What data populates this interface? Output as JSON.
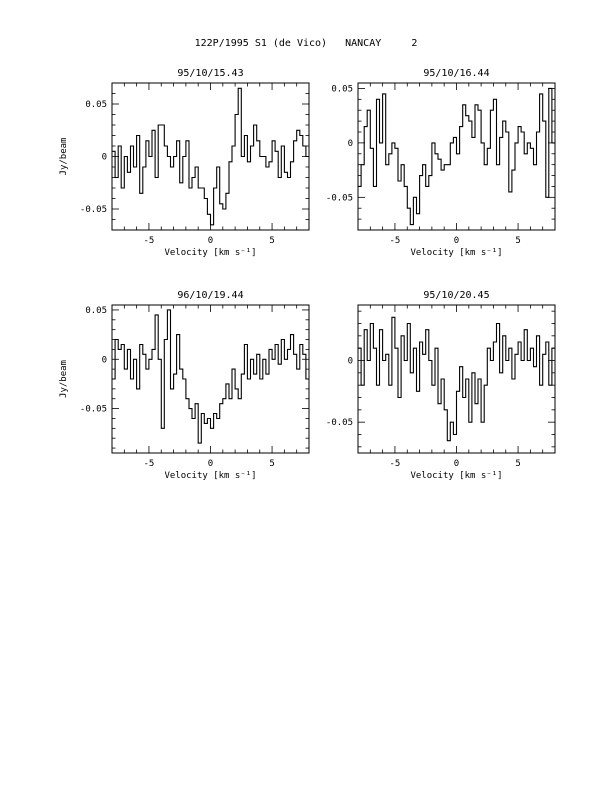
{
  "page": {
    "title": "122P/1995 S1 (de Vico)   NANCAY     2"
  },
  "chart_data": [
    {
      "type": "line",
      "step": true,
      "title": "95/10/15.43",
      "xlabel": "Velocity [km s⁻¹]",
      "ylabel": "Jy/beam",
      "xlim": [
        -8,
        8
      ],
      "ylim": [
        -0.07,
        0.07
      ],
      "xticks": [
        -5,
        0,
        5
      ],
      "yticks": [
        -0.05,
        0,
        0.05
      ],
      "ytick_labels": [
        "-0.05",
        "0",
        "0.05"
      ],
      "x": [
        -8.0,
        -7.75,
        -7.5,
        -7.25,
        -7.0,
        -6.75,
        -6.5,
        -6.25,
        -6.0,
        -5.75,
        -5.5,
        -5.25,
        -5.0,
        -4.75,
        -4.5,
        -4.25,
        -4.0,
        -3.75,
        -3.5,
        -3.25,
        -3.0,
        -2.75,
        -2.5,
        -2.25,
        -2.0,
        -1.75,
        -1.5,
        -1.25,
        -1.0,
        -0.75,
        -0.5,
        -0.25,
        0.0,
        0.25,
        0.5,
        0.75,
        1.0,
        1.25,
        1.5,
        1.75,
        2.0,
        2.25,
        2.5,
        2.75,
        3.0,
        3.25,
        3.5,
        3.75,
        4.0,
        4.25,
        4.5,
        4.75,
        5.0,
        5.25,
        5.5,
        5.75,
        6.0,
        6.25,
        6.5,
        6.75,
        7.0,
        7.25,
        7.5,
        7.75
      ],
      "y": [
        0.005,
        -0.02,
        0.01,
        -0.03,
        0.0,
        -0.015,
        0.01,
        -0.01,
        0.02,
        -0.035,
        -0.01,
        0.015,
        0.0,
        0.025,
        -0.02,
        0.03,
        0.03,
        0.01,
        0.0,
        -0.01,
        0.0,
        0.015,
        -0.025,
        0.0,
        0.015,
        -0.03,
        -0.02,
        -0.01,
        -0.03,
        -0.03,
        -0.04,
        -0.055,
        -0.065,
        -0.03,
        -0.01,
        -0.045,
        -0.05,
        -0.035,
        -0.005,
        0.01,
        0.04,
        0.065,
        0.0,
        0.02,
        -0.005,
        0.01,
        0.03,
        0.015,
        0.0,
        0.0,
        -0.01,
        -0.005,
        0.015,
        0.005,
        -0.02,
        0.01,
        -0.015,
        -0.02,
        -0.005,
        0.015,
        0.025,
        0.02,
        0.01,
        0.0
      ]
    },
    {
      "type": "line",
      "step": true,
      "title": "95/10/16.44",
      "xlabel": "Velocity [km s⁻¹]",
      "ylabel": "",
      "xlim": [
        -8,
        8
      ],
      "ylim": [
        -0.08,
        0.055
      ],
      "xticks": [
        -5,
        0,
        5
      ],
      "yticks": [
        -0.05,
        0,
        0.05
      ],
      "ytick_labels": [
        "-0.05",
        "0",
        "0.05"
      ],
      "x": [
        -8.0,
        -7.75,
        -7.5,
        -7.25,
        -7.0,
        -6.75,
        -6.5,
        -6.25,
        -6.0,
        -5.75,
        -5.5,
        -5.25,
        -5.0,
        -4.75,
        -4.5,
        -4.25,
        -4.0,
        -3.75,
        -3.5,
        -3.25,
        -3.0,
        -2.75,
        -2.5,
        -2.25,
        -2.0,
        -1.75,
        -1.5,
        -1.25,
        -1.0,
        -0.75,
        -0.5,
        -0.25,
        0.0,
        0.25,
        0.5,
        0.75,
        1.0,
        1.25,
        1.5,
        1.75,
        2.0,
        2.25,
        2.5,
        2.75,
        3.0,
        3.25,
        3.5,
        3.75,
        4.0,
        4.25,
        4.5,
        4.75,
        5.0,
        5.25,
        5.5,
        5.75,
        6.0,
        6.25,
        6.5,
        6.75,
        7.0,
        7.25,
        7.5,
        7.75
      ],
      "y": [
        -0.04,
        -0.02,
        0.015,
        0.03,
        -0.005,
        -0.04,
        0.04,
        0.0,
        0.045,
        -0.02,
        -0.01,
        0.0,
        -0.005,
        -0.035,
        -0.02,
        -0.04,
        -0.06,
        -0.075,
        -0.05,
        -0.065,
        -0.03,
        -0.02,
        -0.04,
        -0.03,
        0.0,
        -0.01,
        -0.015,
        -0.025,
        -0.02,
        -0.02,
        0.0,
        0.005,
        -0.01,
        0.015,
        0.035,
        0.025,
        0.02,
        0.005,
        0.035,
        0.03,
        0.0,
        -0.02,
        -0.005,
        0.03,
        0.04,
        -0.02,
        0.005,
        0.02,
        0.01,
        -0.045,
        -0.025,
        0.0,
        0.015,
        0.01,
        -0.01,
        0.0,
        -0.005,
        -0.02,
        0.01,
        0.045,
        0.02,
        -0.05,
        0.05,
        0.0
      ]
    },
    {
      "type": "line",
      "step": true,
      "title": "96/10/19.44",
      "xlabel": "Velocity [km s⁻¹]",
      "ylabel": "Jy/beam",
      "xlim": [
        -8,
        8
      ],
      "ylim": [
        -0.095,
        0.055
      ],
      "xticks": [
        -5,
        0,
        5
      ],
      "yticks": [
        -0.05,
        0,
        0.05
      ],
      "ytick_labels": [
        "-0.05",
        "0",
        "0.05"
      ],
      "x": [
        -8.0,
        -7.75,
        -7.5,
        -7.25,
        -7.0,
        -6.75,
        -6.5,
        -6.25,
        -6.0,
        -5.75,
        -5.5,
        -5.25,
        -5.0,
        -4.75,
        -4.5,
        -4.25,
        -4.0,
        -3.75,
        -3.5,
        -3.25,
        -3.0,
        -2.75,
        -2.5,
        -2.25,
        -2.0,
        -1.75,
        -1.5,
        -1.25,
        -1.0,
        -0.75,
        -0.5,
        -0.25,
        0.0,
        0.25,
        0.5,
        0.75,
        1.0,
        1.25,
        1.5,
        1.75,
        2.0,
        2.25,
        2.5,
        2.75,
        3.0,
        3.25,
        3.5,
        3.75,
        4.0,
        4.25,
        4.5,
        4.75,
        5.0,
        5.25,
        5.5,
        5.75,
        6.0,
        6.25,
        6.5,
        6.75,
        7.0,
        7.25,
        7.5,
        7.75
      ],
      "y": [
        -0.02,
        0.02,
        0.01,
        0.015,
        -0.01,
        0.01,
        -0.02,
        0.0,
        -0.03,
        0.015,
        0.005,
        -0.01,
        0.0,
        0.01,
        0.045,
        0.0,
        -0.07,
        0.02,
        0.05,
        -0.03,
        -0.015,
        0.025,
        -0.01,
        -0.02,
        -0.04,
        -0.05,
        -0.06,
        -0.045,
        -0.085,
        -0.055,
        -0.065,
        -0.06,
        -0.07,
        -0.055,
        -0.06,
        -0.045,
        -0.04,
        -0.025,
        -0.04,
        -0.01,
        -0.03,
        -0.04,
        -0.015,
        0.015,
        -0.02,
        0.0,
        -0.015,
        0.005,
        -0.02,
        0.0,
        -0.015,
        0.01,
        0.0,
        0.015,
        -0.005,
        0.02,
        0.0,
        0.01,
        0.025,
        0.005,
        -0.01,
        0.015,
        0.005,
        -0.02
      ]
    },
    {
      "type": "line",
      "step": true,
      "title": "95/10/20.45",
      "xlabel": "Velocity [km s⁻¹]",
      "ylabel": "",
      "xlim": [
        -8,
        8
      ],
      "ylim": [
        -0.075,
        0.045
      ],
      "xticks": [
        -5,
        0,
        5
      ],
      "yticks": [
        -0.05,
        0
      ],
      "ytick_labels": [
        "-0.05",
        "0"
      ],
      "x": [
        -8.0,
        -7.75,
        -7.5,
        -7.25,
        -7.0,
        -6.75,
        -6.5,
        -6.25,
        -6.0,
        -5.75,
        -5.5,
        -5.25,
        -5.0,
        -4.75,
        -4.5,
        -4.25,
        -4.0,
        -3.75,
        -3.5,
        -3.25,
        -3.0,
        -2.75,
        -2.5,
        -2.25,
        -2.0,
        -1.75,
        -1.5,
        -1.25,
        -1.0,
        -0.75,
        -0.5,
        -0.25,
        0.0,
        0.25,
        0.5,
        0.75,
        1.0,
        1.25,
        1.5,
        1.75,
        2.0,
        2.25,
        2.5,
        2.75,
        3.0,
        3.25,
        3.5,
        3.75,
        4.0,
        4.25,
        4.5,
        4.75,
        5.0,
        5.25,
        5.5,
        5.75,
        6.0,
        6.25,
        6.5,
        6.75,
        7.0,
        7.25,
        7.5,
        7.75
      ],
      "y": [
        0.01,
        -0.02,
        0.025,
        0.0,
        0.03,
        0.01,
        -0.02,
        0.025,
        0.0,
        0.005,
        -0.02,
        0.035,
        0.01,
        -0.03,
        0.02,
        0.0,
        0.03,
        -0.01,
        0.01,
        -0.025,
        0.015,
        0.005,
        0.025,
        0.0,
        -0.02,
        0.01,
        -0.035,
        -0.015,
        -0.04,
        -0.065,
        -0.05,
        -0.06,
        -0.025,
        -0.005,
        -0.03,
        -0.015,
        -0.05,
        -0.01,
        -0.035,
        -0.015,
        -0.05,
        -0.02,
        0.01,
        0.0,
        0.015,
        0.03,
        -0.01,
        0.02,
        0.0,
        0.01,
        -0.015,
        0.005,
        0.015,
        0.0,
        0.025,
        0.0,
        0.01,
        -0.005,
        0.02,
        -0.02,
        0.005,
        0.015,
        -0.02,
        0.01
      ]
    }
  ]
}
